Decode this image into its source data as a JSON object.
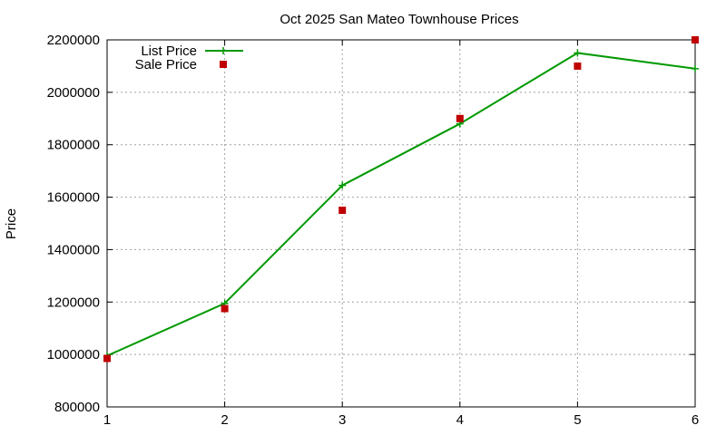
{
  "chart_data": {
    "type": "line",
    "title": "Oct 2025 San Mateo Townhouse Prices",
    "xlabel": "",
    "ylabel": "Price",
    "xlim": [
      1,
      6
    ],
    "ylim": [
      800000,
      2200000
    ],
    "x_ticks": [
      "1",
      "2",
      "3",
      "4",
      "5",
      "6"
    ],
    "y_ticks": [
      "800000",
      "1000000",
      "1200000",
      "1400000",
      "1600000",
      "1800000",
      "2000000",
      "2200000"
    ],
    "grid": true,
    "legend_position": "top-left",
    "series": [
      {
        "name": "List Price",
        "style": "line-points",
        "color": "#009900",
        "marker": "plus",
        "x": [
          1,
          2,
          3,
          4,
          5,
          6
        ],
        "y": [
          995000,
          1195000,
          1645000,
          1880000,
          2150000,
          2090000
        ]
      },
      {
        "name": "Sale Price",
        "style": "points",
        "color": "#c00000",
        "marker": "square",
        "x": [
          1,
          2,
          3,
          4,
          5,
          6
        ],
        "y": [
          985000,
          1175000,
          1550000,
          1900000,
          2100000,
          2200000
        ]
      }
    ]
  }
}
